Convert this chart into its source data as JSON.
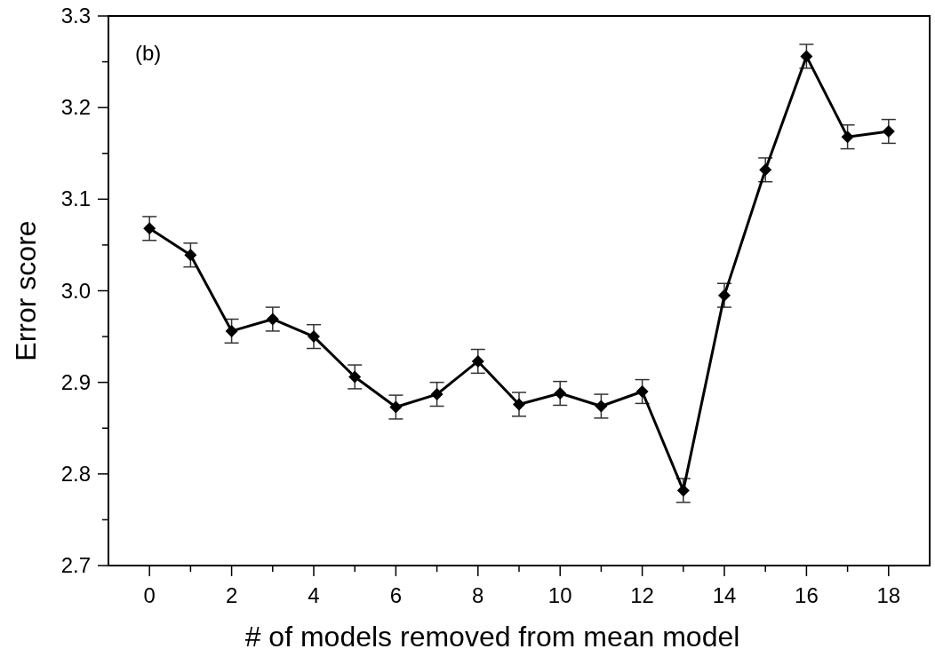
{
  "chart_data": {
    "type": "line",
    "xlabel": "# of models removed from mean model",
    "ylabel": "Error score",
    "annotations": [
      "(b)"
    ],
    "x": [
      0,
      1,
      2,
      3,
      4,
      5,
      6,
      7,
      8,
      9,
      10,
      11,
      12,
      13,
      14,
      15,
      16,
      17,
      18
    ],
    "series": [
      {
        "color": "#000000",
        "values": [
          3.068,
          3.039,
          2.956,
          2.969,
          2.95,
          2.906,
          2.873,
          2.887,
          2.923,
          2.876,
          2.888,
          2.874,
          2.89,
          2.782,
          2.995,
          3.132,
          3.256,
          3.168,
          3.174
        ],
        "errors": [
          0.013,
          0.013,
          0.013,
          0.013,
          0.013,
          0.013,
          0.013,
          0.013,
          0.013,
          0.013,
          0.013,
          0.013,
          0.013,
          0.013,
          0.013,
          0.013,
          0.013,
          0.013,
          0.013
        ]
      }
    ],
    "xlim": [
      -1,
      19
    ],
    "xticks": [
      0,
      {
        "value": 1,
        "label": null
      },
      2,
      {
        "value": 3,
        "label": null
      },
      4,
      {
        "value": 5,
        "label": null
      },
      6,
      {
        "value": 7,
        "label": null
      },
      8,
      {
        "value": 9,
        "label": null
      },
      10,
      {
        "value": 11,
        "label": null
      },
      12,
      {
        "value": 13,
        "label": null
      },
      14,
      {
        "value": 15,
        "label": null
      },
      16,
      {
        "value": 17,
        "label": null
      },
      18
    ],
    "ylim": [
      2.7,
      3.3
    ],
    "yticks": [
      {
        "value": 2.7,
        "label": "2.7"
      },
      {
        "value": 2.75,
        "label": null
      },
      {
        "value": 2.8,
        "label": "2.8"
      },
      {
        "value": 2.85,
        "label": null
      },
      {
        "value": 2.9,
        "label": "2.9"
      },
      {
        "value": 2.95,
        "label": null
      },
      {
        "value": 3.0,
        "label": "3.0"
      },
      {
        "value": 3.05,
        "label": null
      },
      {
        "value": 3.1,
        "label": "3.1"
      },
      {
        "value": 3.15,
        "label": null
      },
      {
        "value": 3.2,
        "label": "3.2"
      },
      {
        "value": 3.25,
        "label": null
      },
      {
        "value": 3.3,
        "label": "3.3"
      }
    ],
    "marker": "diamond",
    "line_style": "solid"
  }
}
